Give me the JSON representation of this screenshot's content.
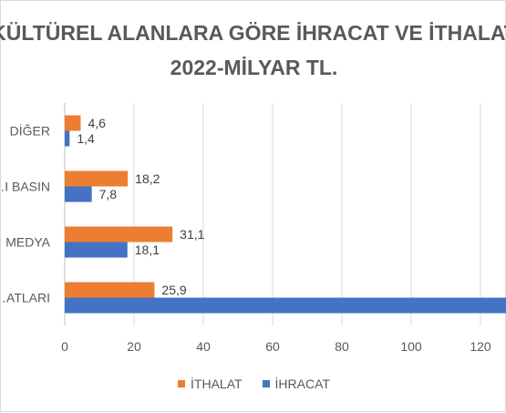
{
  "chart_data": {
    "type": "bar",
    "orientation": "horizontal",
    "title_lines": [
      "KÜLTÜREL ALANLARA GÖRE İHRACAT VE İTHALAT",
      "2022-MİLYAR TL."
    ],
    "categories": [
      "…ATLARI",
      "MEDYA",
      "…I BASIN",
      "DİĞER"
    ],
    "series": [
      {
        "name": "İTHALAT",
        "color": "#ed7d31",
        "values": [
          25.9,
          31.1,
          18.2,
          4.6
        ],
        "labels": [
          "25,9",
          "31,1",
          "18,2",
          "4,6"
        ]
      },
      {
        "name": "İHRACAT",
        "color": "#4472c4",
        "values": [
          null,
          18.1,
          7.8,
          1.4
        ],
        "labels": [
          "",
          "18,1",
          "7,8",
          "1,4"
        ]
      }
    ],
    "xlim": [
      0,
      140
    ],
    "xticks": [
      0,
      20,
      40,
      60,
      80,
      100,
      120
    ],
    "xtick_labels": [
      "0",
      "20",
      "40",
      "60",
      "80",
      "100",
      "120"
    ],
    "grid": true,
    "legend": "bottom",
    "legend_entries": [
      "İTHALAT",
      "İHRACAT"
    ]
  }
}
